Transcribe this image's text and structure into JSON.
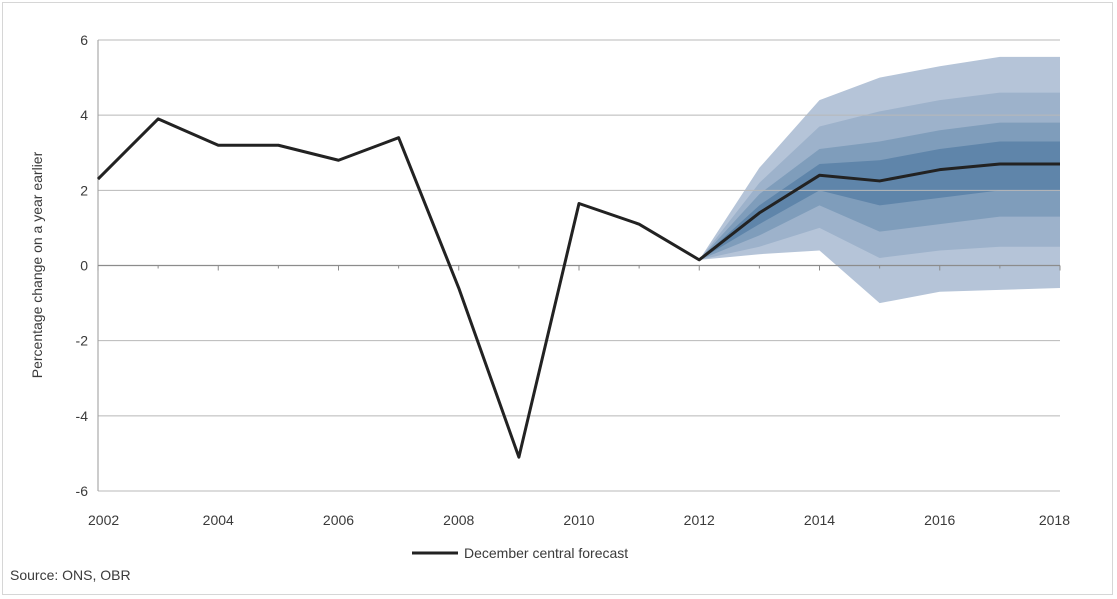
{
  "chart_data": {
    "type": "line",
    "title": "",
    "xlabel": "",
    "ylabel": "Percentage change on a year earlier",
    "xlim": [
      2002,
      2018
    ],
    "ylim": [
      -6,
      6
    ],
    "x_ticks": [
      "2002",
      "2004",
      "2006",
      "2008",
      "2010",
      "2012",
      "2014",
      "2016",
      "2018"
    ],
    "y_ticks": [
      "6",
      "4",
      "2",
      "0",
      "-2",
      "-4",
      "-6"
    ],
    "grid": "horizontal",
    "legend": {
      "placement": "bottom-center",
      "entries": [
        "December central forecast"
      ]
    },
    "series": [
      {
        "name": "December central forecast",
        "color": "#222222",
        "x": [
          2002,
          2003,
          2004,
          2005,
          2006,
          2007,
          2008,
          2009,
          2010,
          2011,
          2012,
          2013,
          2014,
          2015,
          2016,
          2017,
          2018
        ],
        "y": [
          2.3,
          3.9,
          3.2,
          3.2,
          2.8,
          3.4,
          -0.6,
          -5.1,
          1.65,
          1.1,
          0.15,
          1.4,
          2.4,
          2.25,
          2.55,
          2.7,
          2.7
        ]
      }
    ],
    "fan_x": [
      2012,
      2013,
      2014,
      2015,
      2016,
      2017,
      2018
    ],
    "fan_bands": [
      {
        "color": "#b5c4d8",
        "upper": [
          0.15,
          2.6,
          4.4,
          5.0,
          5.3,
          5.55,
          5.55
        ],
        "lower": [
          0.15,
          0.3,
          0.4,
          -1.0,
          -0.7,
          -0.65,
          -0.6
        ]
      },
      {
        "color": "#9db2cb",
        "upper": [
          0.15,
          2.2,
          3.7,
          4.1,
          4.4,
          4.6,
          4.6
        ],
        "lower": [
          0.15,
          0.5,
          1.0,
          0.2,
          0.4,
          0.5,
          0.5
        ]
      },
      {
        "color": "#7f9dbb",
        "upper": [
          0.15,
          1.9,
          3.1,
          3.3,
          3.6,
          3.8,
          3.8
        ],
        "lower": [
          0.15,
          0.8,
          1.6,
          0.9,
          1.1,
          1.3,
          1.3
        ]
      },
      {
        "color": "#5f85aa",
        "upper": [
          0.15,
          1.6,
          2.7,
          2.8,
          3.1,
          3.3,
          3.3
        ],
        "lower": [
          0.15,
          1.1,
          2.0,
          1.6,
          1.8,
          2.0,
          2.0
        ]
      }
    ],
    "source": "Source: ONS, OBR"
  }
}
